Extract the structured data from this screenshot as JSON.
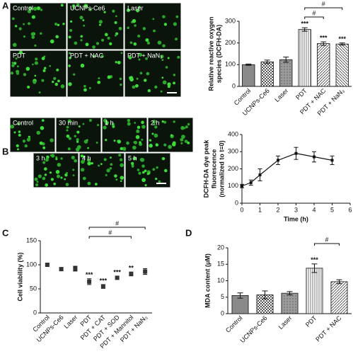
{
  "panels": [
    "A",
    "B",
    "C",
    "D"
  ],
  "micrographs": [
    {
      "labels": [
        "Control",
        "UCNPs-Ce6",
        "Laser",
        "PDT",
        "PDT + NAC",
        "PDT + NaN₃"
      ]
    },
    {
      "labels": [
        "Control",
        "30 min",
        "1 h",
        "2 h",
        "3 h",
        "4 h",
        "5 h"
      ]
    }
  ],
  "chart_data": [
    {
      "type": "bar",
      "ylabel": [
        "Relative reactive oxygen",
        "species (DCFH-DA)"
      ],
      "categories": [
        "Control",
        "UCNPs-Ce6",
        "Laser",
        "PDT",
        "PDT + NAC",
        "PDT + NaN₃"
      ],
      "values": [
        100,
        113,
        123,
        262,
        197,
        195
      ],
      "errors": [
        3,
        8,
        12,
        8,
        8,
        5
      ],
      "significance": [
        null,
        null,
        null,
        "***",
        "***",
        "***"
      ],
      "brackets": [
        {
          "from": "PDT",
          "to": "PDT + NAC",
          "label": "#"
        },
        {
          "from": "PDT",
          "to": "PDT + NaN₃",
          "label": "#"
        }
      ],
      "ylim": [
        0,
        300
      ],
      "yticks": [
        0,
        100,
        200,
        300
      ]
    },
    {
      "type": "line",
      "ylabel": [
        "DCFH-DA dye peak",
        "fluorescence",
        "(normalized to t=0)"
      ],
      "xlabel": "Time (h)",
      "x": [
        0,
        0.5,
        1,
        2,
        3,
        4,
        5
      ],
      "values": [
        100,
        120,
        165,
        250,
        290,
        270,
        250
      ],
      "errors": [
        10,
        15,
        35,
        25,
        35,
        30,
        25
      ],
      "xlim": [
        0,
        6
      ],
      "xticks": [
        0,
        1,
        2,
        3,
        4,
        5,
        6
      ],
      "ylim": [
        0,
        400
      ],
      "yticks": [
        0,
        100,
        200,
        300,
        400
      ]
    },
    {
      "type": "dot",
      "ylabel": [
        "Cell viability (%)"
      ],
      "categories": [
        "Control",
        "UCNPs-Ce6",
        "Laser",
        "PDT",
        "PDT + CAT",
        "PDT + SOD",
        "PDT + Mannitol",
        "PDT + NaN₃"
      ],
      "values": [
        100,
        91,
        92,
        65,
        55,
        73,
        81,
        86
      ],
      "errors": [
        2,
        3,
        5,
        6,
        4,
        3,
        4,
        6
      ],
      "significance": [
        null,
        null,
        null,
        "***",
        "***",
        "***",
        "**",
        null
      ],
      "brackets": [
        {
          "from": "PDT",
          "to": "PDT + Mannitol",
          "label": "#"
        },
        {
          "from": "PDT",
          "to": "PDT + NaN₃",
          "label": "#"
        }
      ],
      "ylim": [
        0,
        150
      ],
      "yticks": [
        0,
        50,
        100,
        150
      ]
    },
    {
      "type": "bar",
      "ylabel": [
        "MDA content (μM)"
      ],
      "categories": [
        "Control",
        "UCNPs-Ce6",
        "Laser",
        "PDT",
        "PDT + NAC"
      ],
      "values": [
        5.5,
        5.7,
        6.2,
        13.8,
        9.7
      ],
      "errors": [
        0.8,
        1.2,
        0.5,
        1.3,
        0.6
      ],
      "significance": [
        null,
        null,
        null,
        "***",
        null
      ],
      "brackets": [
        {
          "from": "PDT",
          "to": "PDT + NAC",
          "label": "#"
        }
      ],
      "ylim": [
        0,
        20
      ],
      "yticks": [
        0,
        5,
        10,
        15,
        20
      ]
    }
  ]
}
